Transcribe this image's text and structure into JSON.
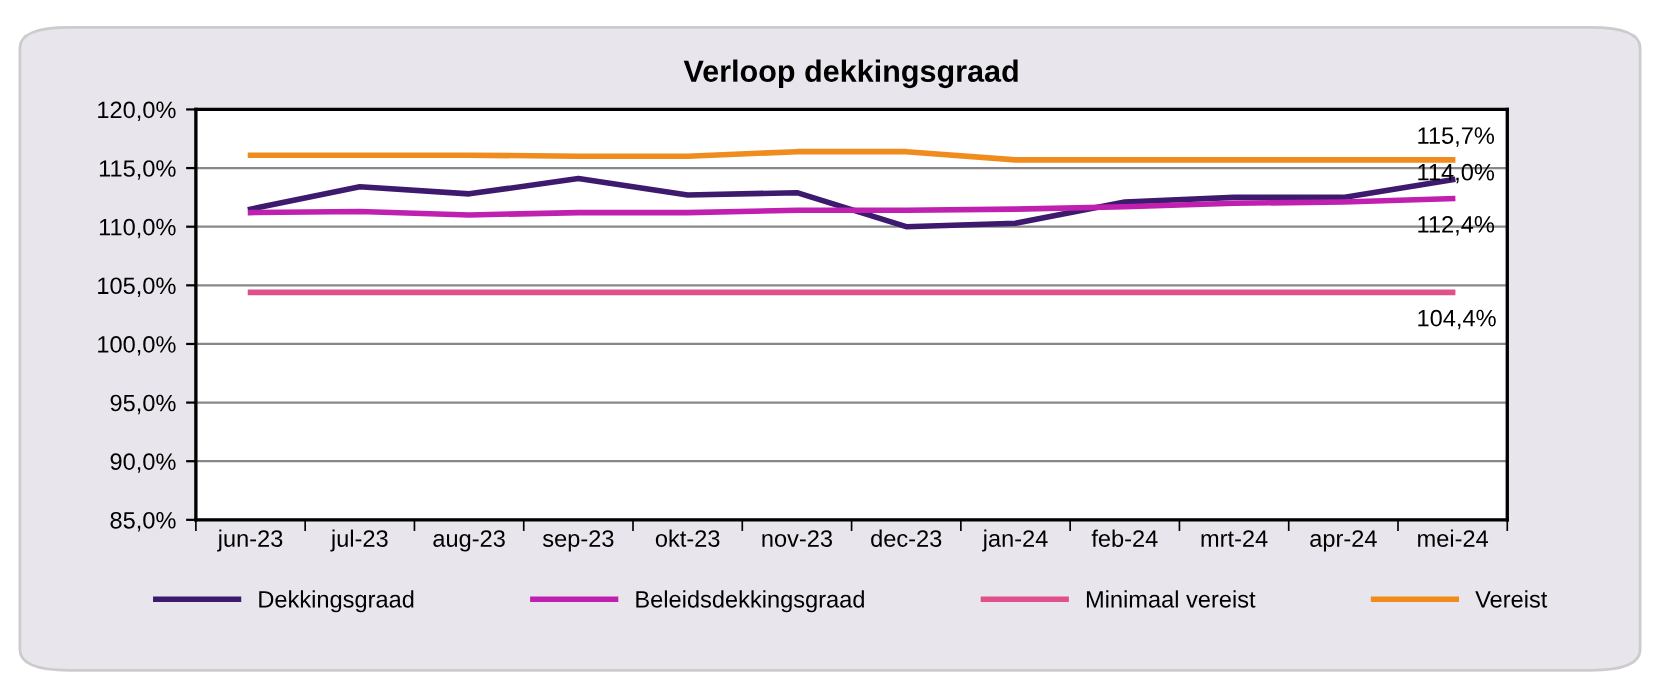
{
  "chart_data": {
    "type": "line",
    "title": "Verloop dekkingsgraad",
    "categories": [
      "jun-23",
      "jul-23",
      "aug-23",
      "sep-23",
      "okt-23",
      "nov-23",
      "dec-23",
      "jan-24",
      "feb-24",
      "mrt-24",
      "apr-24",
      "mei-24"
    ],
    "series": [
      {
        "name": "Dekkingsgraad",
        "color": "#3d1a6e",
        "values": [
          111.5,
          113.4,
          112.8,
          114.1,
          112.7,
          112.9,
          110.0,
          110.3,
          112.1,
          112.5,
          112.5,
          114.0
        ]
      },
      {
        "name": "Beleidsdekkingsgraad",
        "color": "#c020b0",
        "values": [
          111.2,
          111.3,
          111.0,
          111.2,
          111.2,
          111.4,
          111.4,
          111.5,
          111.7,
          112.0,
          112.1,
          112.4
        ]
      },
      {
        "name": "Minimaal vereist",
        "color": "#e0508a",
        "values": [
          104.4,
          104.4,
          104.4,
          104.4,
          104.4,
          104.4,
          104.4,
          104.4,
          104.4,
          104.4,
          104.4,
          104.4
        ]
      },
      {
        "name": "Vereist",
        "color": "#f08c1e",
        "values": [
          116.1,
          116.1,
          116.1,
          116.0,
          116.0,
          116.4,
          116.4,
          115.7,
          115.7,
          115.7,
          115.7,
          115.7
        ]
      }
    ],
    "annotations": [
      {
        "text": "115,7%",
        "x": "mei-24",
        "y": 115.7
      },
      {
        "text": "114,0%",
        "x": "mei-24",
        "y": 114.0
      },
      {
        "text": "112,4%",
        "x": "mei-24",
        "y": 112.4
      },
      {
        "text": "104,4%",
        "x": "mei-24",
        "y": 104.4
      }
    ],
    "ylim": [
      85,
      120
    ],
    "yticks": [
      {
        "value": 85,
        "label": "85,0%"
      },
      {
        "value": 90,
        "label": "90,0%"
      },
      {
        "value": 95,
        "label": "95,0%"
      },
      {
        "value": 100,
        "label": "100,0%"
      },
      {
        "value": 105,
        "label": "105,0%"
      },
      {
        "value": 110,
        "label": "110,0%"
      },
      {
        "value": 115,
        "label": "115,0%"
      },
      {
        "value": 120,
        "label": "120,0%"
      }
    ],
    "grid": "y",
    "legend": "bottom",
    "marker": "none",
    "line_style": "solid"
  }
}
